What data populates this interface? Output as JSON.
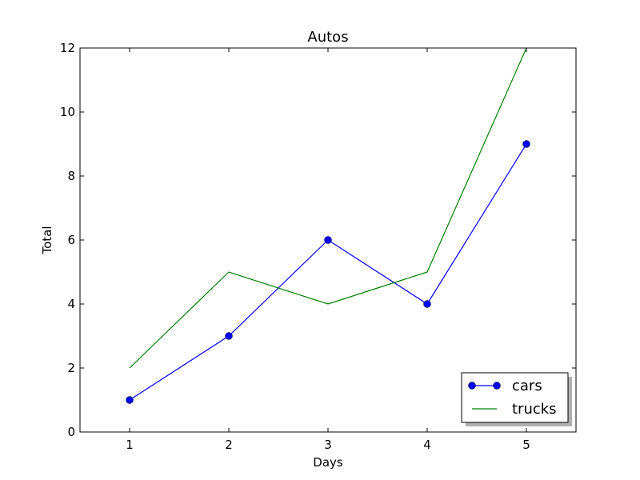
{
  "chart_data": {
    "type": "line",
    "title": "Autos",
    "xlabel": "Days",
    "ylabel": "Total",
    "x": [
      1,
      2,
      3,
      4,
      5
    ],
    "xticks": [
      "1",
      "2",
      "3",
      "4",
      "5"
    ],
    "yticks": [
      "0",
      "2",
      "4",
      "6",
      "8",
      "10",
      "12"
    ],
    "xlim": [
      0.5,
      5.5
    ],
    "ylim": [
      0,
      12
    ],
    "grid": false,
    "legend_position": "lower-right",
    "series": [
      {
        "name": "cars",
        "values": [
          1,
          3,
          6,
          4,
          9
        ],
        "color": "#0000ff",
        "marker": "circle"
      },
      {
        "name": "trucks",
        "values": [
          2,
          5,
          4,
          5,
          12
        ],
        "color": "#008000",
        "marker": "none"
      }
    ]
  }
}
